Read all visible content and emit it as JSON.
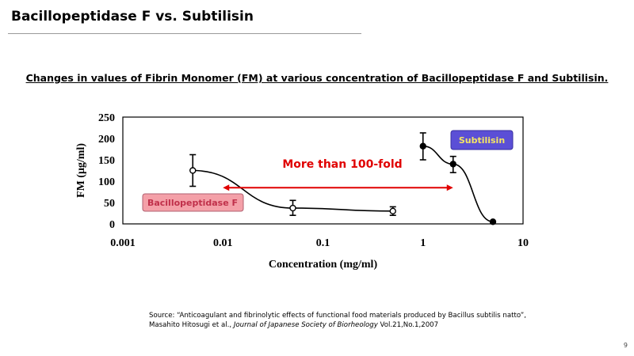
{
  "slide": {
    "title": "Bacillopeptidase F vs. Subtilisin",
    "subtitle": "Changes in values of Fibrin Monomer (FM) at various concentration of Bacillopeptidase F and Subtilisin.",
    "source_line1": "Source: “Anticoagulant and fibrinolytic effects of functional food materials produced by Bacillus subtilis natto”,",
    "source_line2_prefix": "Masahito Hitosugi et al., ",
    "source_journal": "Journal of Japanese Society of Biorheology",
    "source_line2_suffix": " Vol.21,No.1,2007",
    "page_number": "9"
  },
  "chart_data": {
    "type": "line",
    "xlabel": "Concentration (mg/ml)",
    "ylabel": "FM (μg/ml)",
    "xscale": "log",
    "xlim": [
      0.001,
      10
    ],
    "ylim": [
      0,
      250
    ],
    "xticks": [
      {
        "v": 0.001,
        "label": "0.001"
      },
      {
        "v": 0.01,
        "label": "0.01"
      },
      {
        "v": 0.1,
        "label": "0.1"
      },
      {
        "v": 1,
        "label": "1"
      },
      {
        "v": 10,
        "label": "10"
      }
    ],
    "yticks": [
      {
        "v": 0,
        "label": "0"
      },
      {
        "v": 50,
        "label": "50"
      },
      {
        "v": 100,
        "label": "100"
      },
      {
        "v": 150,
        "label": "150"
      },
      {
        "v": 200,
        "label": "200"
      },
      {
        "v": 250,
        "label": "250"
      }
    ],
    "series": [
      {
        "name": "Bacillopeptidase F",
        "marker": "open",
        "label_bg": "#f4a0a8",
        "label_color": "#c0304a",
        "points": [
          {
            "x": 0.005,
            "y": 125,
            "lo": 88,
            "hi": 162
          },
          {
            "x": 0.05,
            "y": 37,
            "lo": 20,
            "hi": 55
          },
          {
            "x": 0.5,
            "y": 30,
            "lo": 20,
            "hi": 40
          }
        ]
      },
      {
        "name": "Subtilisin",
        "marker": "filled",
        "label_bg": "#5b4fd6",
        "label_color": "#f5e663",
        "points": [
          {
            "x": 1,
            "y": 182,
            "lo": 150,
            "hi": 213
          },
          {
            "x": 2,
            "y": 140,
            "lo": 120,
            "hi": 158
          },
          {
            "x": 5,
            "y": 5,
            "lo": 5,
            "hi": 5
          }
        ]
      }
    ],
    "annotation": {
      "text": "More than 100-fold",
      "from_x": 0.01,
      "to_x": 2,
      "y": 105,
      "color": "#e00000"
    }
  }
}
